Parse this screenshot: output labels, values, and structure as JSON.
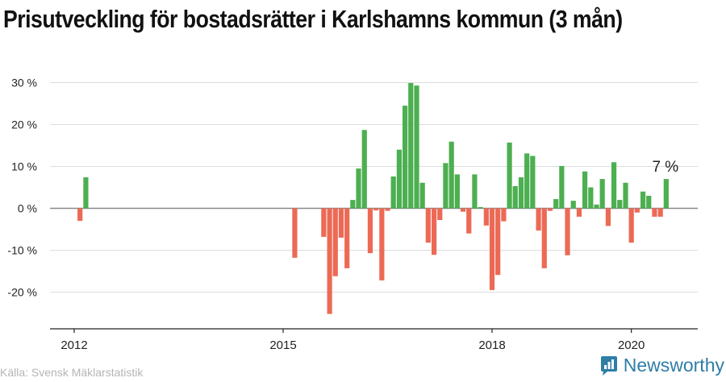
{
  "title": "Prisutveckling för bostadsrätter i Karlshamns kommun (3 mån)",
  "source": "Källa: Svensk Mäklarstatistik",
  "brand": "Newsworthy",
  "colors": {
    "positive": "#4caf50",
    "negative": "#ec6a55",
    "brand": "#2e7ea6"
  },
  "chart_data": {
    "type": "bar",
    "ylim": [
      -30,
      30
    ],
    "xlim": [
      2011.75,
      2020.9
    ],
    "yticks": [
      30,
      20,
      10,
      0,
      -10,
      -20
    ],
    "ytick_labels": [
      "30 %",
      "20 %",
      "10 %",
      "0 %",
      "-10 %",
      "-20 %"
    ],
    "xticks": [
      2012,
      2015,
      2018,
      2020
    ],
    "xtick_labels": [
      "2012",
      "2015",
      "2018",
      "2020"
    ],
    "grid": true,
    "last_value_label": "7 %",
    "x": [
      2012.083,
      2012.167,
      2015.167,
      2015.583,
      2015.667,
      2015.75,
      2015.833,
      2015.917,
      2016.0,
      2016.083,
      2016.167,
      2016.25,
      2016.333,
      2016.417,
      2016.5,
      2016.583,
      2016.667,
      2016.75,
      2016.833,
      2016.917,
      2017.0,
      2017.083,
      2017.167,
      2017.25,
      2017.333,
      2017.417,
      2017.5,
      2017.583,
      2017.667,
      2017.75,
      2017.833,
      2017.917,
      2018.0,
      2018.083,
      2018.167,
      2018.25,
      2018.333,
      2018.417,
      2018.5,
      2018.583,
      2018.667,
      2018.75,
      2018.833,
      2018.917,
      2019.0,
      2019.083,
      2019.167,
      2019.25,
      2019.333,
      2019.417,
      2019.5,
      2019.583,
      2019.667,
      2019.75,
      2019.833,
      2019.917,
      2020.0,
      2020.083,
      2020.167,
      2020.25,
      2020.333,
      2020.417,
      2020.5
    ],
    "values": [
      -3,
      7.4,
      -11.8,
      -6.8,
      -25.2,
      -16.2,
      -7.0,
      -14.3,
      2.0,
      9.5,
      18.7,
      -10.7,
      -0.5,
      -17.2,
      -0.6,
      7.6,
      14.0,
      24.5,
      29.9,
      29.3,
      6.1,
      -8.2,
      -11.1,
      -2.8,
      10.8,
      15.9,
      8.1,
      -0.8,
      -6.0,
      8.1,
      0.3,
      -4.1,
      -19.5,
      -15.9,
      -3.1,
      15.7,
      5.3,
      7.4,
      13.1,
      12.5,
      -5.3,
      -14.3,
      -0.6,
      2.2,
      10.1,
      -11.2,
      1.8,
      -2.0,
      8.8,
      5.0,
      0.9,
      7.0,
      -4.2,
      11.0,
      2.0,
      6.1,
      -8.2,
      -1.0,
      4.0,
      3.0,
      -2.0,
      -2.0,
      7.0
    ]
  }
}
